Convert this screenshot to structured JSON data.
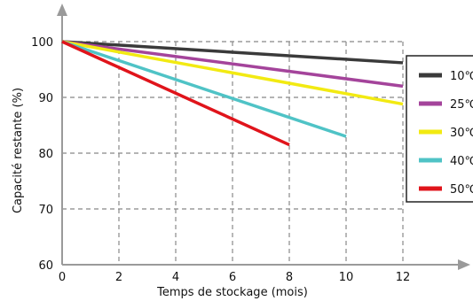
{
  "chart_data": {
    "type": "line",
    "title": "",
    "xlabel": "Temps de stockage (mois)",
    "ylabel": "Capacité restante (%)",
    "xlim": [
      0,
      12
    ],
    "ylim": [
      60,
      100
    ],
    "x_ticks": [
      0,
      2,
      4,
      6,
      8,
      10,
      12
    ],
    "y_ticks": [
      60,
      70,
      80,
      90,
      100
    ],
    "grid": true,
    "legend_position": "right",
    "series": [
      {
        "name": "10℃",
        "color": "#3a3a3a",
        "x": [
          0,
          12
        ],
        "y": [
          100,
          96.2
        ]
      },
      {
        "name": "25℃",
        "color": "#a4449b",
        "x": [
          0,
          12
        ],
        "y": [
          100,
          92.0
        ]
      },
      {
        "name": "30℃",
        "color": "#f2ea12",
        "x": [
          0,
          12
        ],
        "y": [
          100,
          88.8
        ]
      },
      {
        "name": "40℃",
        "color": "#4fc3c6",
        "x": [
          0,
          10
        ],
        "y": [
          100,
          83.0
        ]
      },
      {
        "name": "50℃",
        "color": "#e0141b",
        "x": [
          0,
          8
        ],
        "y": [
          100,
          81.5
        ]
      }
    ]
  }
}
